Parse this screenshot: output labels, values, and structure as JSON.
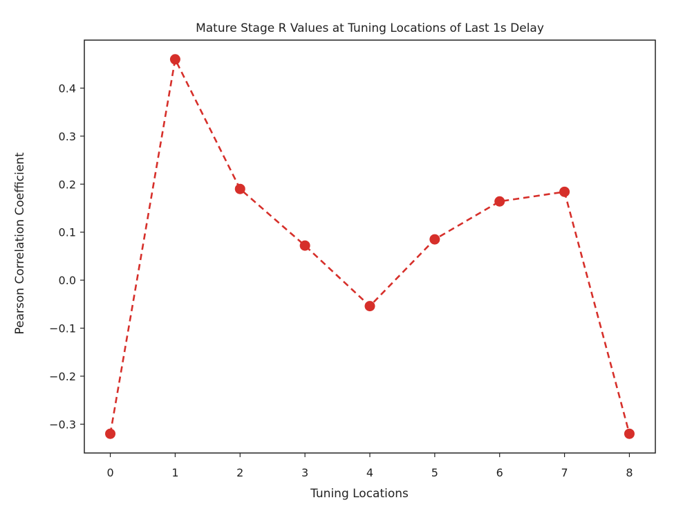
{
  "chart_data": {
    "type": "line",
    "title": "Mature Stage R Values at Tuning Locations of Last 1s Delay",
    "xlabel": "Tuning Locations",
    "ylabel": "Pearson Correlation Coefficient",
    "x": [
      0,
      1,
      2,
      3,
      4,
      5,
      6,
      7,
      8
    ],
    "x_ticks": [
      "0",
      "1",
      "2",
      "3",
      "4",
      "5",
      "6",
      "7",
      "8"
    ],
    "y_ticks": [
      -0.3,
      -0.2,
      -0.1,
      0.0,
      0.1,
      0.2,
      0.3,
      0.4
    ],
    "y_tick_labels": [
      "−0.3",
      "−0.2",
      "−0.1",
      "0.0",
      "0.1",
      "0.2",
      "0.3",
      "0.4"
    ],
    "xlim": [
      -0.4,
      8.4
    ],
    "ylim": [
      -0.36,
      0.5
    ],
    "grid": false,
    "series": [
      {
        "values": [
          -0.32,
          0.46,
          0.19,
          0.072,
          -0.054,
          0.085,
          0.164,
          0.184,
          -0.32
        ],
        "color": "#d62f2a",
        "line_style": "dashed",
        "marker": "circle"
      }
    ]
  }
}
